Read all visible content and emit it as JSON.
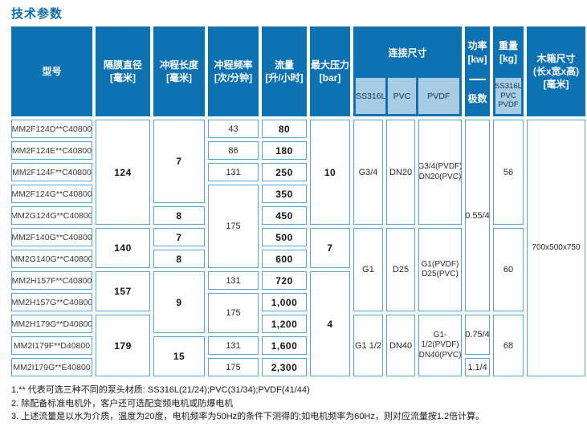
{
  "title": "技术参数",
  "colors": {
    "header_blue": "#0e72b2",
    "light_blue": "#a9cbe3",
    "border_blue": "#55a4d2",
    "title_blue": "#0c6aab"
  },
  "table": {
    "header": {
      "connection": "连接尺寸",
      "conn_sub": [
        "SS316L",
        "PVC",
        "PVDF"
      ],
      "power": "功率\n[kw]",
      "poles": "极数",
      "weight": "重量\n[kg]",
      "weight_sub": "SS316L\nPVC\nPVDF"
    },
    "cells": [
      {
        "t": "型号",
        "c": 1,
        "r": 1,
        "rs": 2,
        "k": "h"
      },
      {
        "t": "隔膜直径\n[毫米]",
        "c": 2,
        "r": 1,
        "rs": 2,
        "k": "h"
      },
      {
        "t": "冲程长度\n[毫米]",
        "c": 3,
        "r": 1,
        "rs": 2,
        "k": "h"
      },
      {
        "t": "冲程频率\n[次/分钟]",
        "c": 4,
        "r": 1,
        "rs": 2,
        "k": "h"
      },
      {
        "t": "流量\n[升/小时]",
        "c": 5,
        "r": 1,
        "rs": 2,
        "k": "h"
      },
      {
        "t": "最大压力\n[bar]",
        "c": 6,
        "r": 1,
        "rs": 2,
        "k": "h"
      },
      {
        "t": "木箱尺寸\n(长x宽x高)\n[毫米]",
        "c": 12,
        "r": 1,
        "rs": 2,
        "k": "h"
      },
      {
        "t": "MM2F124D**C40800",
        "c": 1,
        "r": 3,
        "k": "m"
      },
      {
        "t": "MM2F124E**C40800",
        "c": 1,
        "r": 4,
        "k": "m"
      },
      {
        "t": "MM2F124F**C40800",
        "c": 1,
        "r": 5,
        "k": "m"
      },
      {
        "t": "MM2F124G**C40800",
        "c": 1,
        "r": 6,
        "k": "m"
      },
      {
        "t": "MM2G124G**C40800",
        "c": 1,
        "r": 7,
        "k": "m"
      },
      {
        "t": "MM2F140G**C40800",
        "c": 1,
        "r": 8,
        "k": "m"
      },
      {
        "t": "MM2G140G**C40800",
        "c": 1,
        "r": 9,
        "k": "m"
      },
      {
        "t": "MM2H157F**C40800",
        "c": 1,
        "r": 10,
        "k": "m"
      },
      {
        "t": "MM2H157G**C40800",
        "c": 1,
        "r": 11,
        "k": "m"
      },
      {
        "t": "MM2H179G**D40800",
        "c": 1,
        "r": 12,
        "k": "m"
      },
      {
        "t": "MM2I179F**D40800",
        "c": 1,
        "r": 13,
        "k": "m"
      },
      {
        "t": "MM2I179G**E40800",
        "c": 1,
        "r": 14,
        "k": "m"
      },
      {
        "t": "124",
        "c": 2,
        "r": 3,
        "rs": 5,
        "k": "b"
      },
      {
        "t": "140",
        "c": 2,
        "r": 8,
        "rs": 2,
        "k": "b"
      },
      {
        "t": "157",
        "c": 2,
        "r": 10,
        "rs": 2,
        "k": "b"
      },
      {
        "t": "179",
        "c": 2,
        "r": 12,
        "rs": 3,
        "k": "b"
      },
      {
        "t": "7",
        "c": 3,
        "r": 3,
        "rs": 4,
        "k": "b"
      },
      {
        "t": "8",
        "c": 3,
        "r": 7,
        "k": "b"
      },
      {
        "t": "7",
        "c": 3,
        "r": 8,
        "k": "b"
      },
      {
        "t": "8",
        "c": 3,
        "r": 9,
        "k": "b"
      },
      {
        "t": "9",
        "c": 3,
        "r": 10,
        "rs": 3,
        "k": "b"
      },
      {
        "t": "15",
        "c": 3,
        "r": 13,
        "rs": 2,
        "k": "b"
      },
      {
        "t": "43",
        "c": 4,
        "r": 3,
        "k": "d"
      },
      {
        "t": "86",
        "c": 4,
        "r": 4,
        "k": "d"
      },
      {
        "t": "131",
        "c": 4,
        "r": 5,
        "k": "d"
      },
      {
        "t": "175",
        "c": 4,
        "r": 6,
        "rs": 4,
        "k": "d"
      },
      {
        "t": "131",
        "c": 4,
        "r": 10,
        "k": "d"
      },
      {
        "t": "175",
        "c": 4,
        "r": 11,
        "rs": 2,
        "k": "d"
      },
      {
        "t": "131",
        "c": 4,
        "r": 13,
        "k": "d"
      },
      {
        "t": "175",
        "c": 4,
        "r": 14,
        "k": "d"
      },
      {
        "t": "80",
        "c": 5,
        "r": 3,
        "k": "b"
      },
      {
        "t": "180",
        "c": 5,
        "r": 4,
        "k": "b"
      },
      {
        "t": "250",
        "c": 5,
        "r": 5,
        "k": "b"
      },
      {
        "t": "350",
        "c": 5,
        "r": 6,
        "k": "b"
      },
      {
        "t": "450",
        "c": 5,
        "r": 7,
        "k": "b"
      },
      {
        "t": "500",
        "c": 5,
        "r": 8,
        "k": "b"
      },
      {
        "t": "600",
        "c": 5,
        "r": 9,
        "k": "b"
      },
      {
        "t": "720",
        "c": 5,
        "r": 10,
        "k": "b"
      },
      {
        "t": "1,000",
        "c": 5,
        "r": 11,
        "k": "b"
      },
      {
        "t": "1,200",
        "c": 5,
        "r": 12,
        "k": "b"
      },
      {
        "t": "1,600",
        "c": 5,
        "r": 13,
        "k": "b"
      },
      {
        "t": "2,300",
        "c": 5,
        "r": 14,
        "k": "b"
      },
      {
        "t": "10",
        "c": 6,
        "r": 3,
        "rs": 5,
        "k": "b"
      },
      {
        "t": "7",
        "c": 6,
        "r": 8,
        "rs": 2,
        "k": "b"
      },
      {
        "t": "4",
        "c": 6,
        "r": 10,
        "rs": 5,
        "k": "b"
      },
      {
        "t": "G3/4",
        "c": 7,
        "r": 3,
        "rs": 5,
        "k": "d"
      },
      {
        "t": "G1",
        "c": 7,
        "r": 8,
        "rs": 4,
        "k": "d"
      },
      {
        "t": "G1 1/2",
        "c": 7,
        "r": 12,
        "rs": 3,
        "k": "d"
      },
      {
        "t": "DN20",
        "c": 8,
        "r": 3,
        "rs": 5,
        "k": "d"
      },
      {
        "t": "D25",
        "c": 8,
        "r": 8,
        "rs": 4,
        "k": "d"
      },
      {
        "t": "DN40",
        "c": 8,
        "r": 12,
        "rs": 3,
        "k": "d"
      },
      {
        "t": "G3/4(PVDF)\nDN20(PVC)",
        "c": 9,
        "r": 3,
        "rs": 5,
        "k": "s"
      },
      {
        "t": "G1(PVDF)\nD25(PVC)",
        "c": 9,
        "r": 8,
        "rs": 4,
        "k": "s"
      },
      {
        "t": "G1-1/2(PVDF)\nDN40(PVC)",
        "c": 9,
        "r": 12,
        "rs": 3,
        "k": "s"
      },
      {
        "t": "0.55/4",
        "c": 10,
        "r": 3,
        "rs": 9,
        "k": "d"
      },
      {
        "t": "0.75/4",
        "c": 10,
        "r": 12,
        "rs": 2,
        "k": "d"
      },
      {
        "t": "1.1/4",
        "c": 10,
        "r": 14,
        "k": "d"
      },
      {
        "t": "56",
        "c": 11,
        "r": 3,
        "rs": 5,
        "k": "d"
      },
      {
        "t": "60",
        "c": 11,
        "r": 8,
        "rs": 4,
        "k": "d"
      },
      {
        "t": "68",
        "c": 11,
        "r": 12,
        "rs": 3,
        "k": "d"
      },
      {
        "t": "700x500x750",
        "c": 12,
        "r": 3,
        "rs": 12,
        "k": "s"
      }
    ]
  },
  "footnotes": [
    "1.** 代表可选三种不同的泵头材质: SS316L(21/24);PVC(31/34);PVDF(41/44)",
    "2. 除配备标准电机外，客户还可选配变频电机或防爆电机",
    "3. 上述流量是以水为介质，温度为20度，电机频率为50Hz的条件下测得的;如电机频率为60Hz，则对应流量按1.2倍计算。"
  ]
}
